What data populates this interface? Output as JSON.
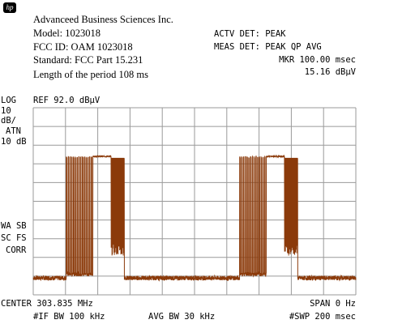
{
  "logo": "hp",
  "header": {
    "company": "Advanceed Business Sciences Inc.",
    "model": "Model: 1023018",
    "fcc_id": "FCC ID: OAM 1023018",
    "standard": "Standard: FCC Part 15.231",
    "period": "Length of the period 108 ms"
  },
  "instrument": {
    "actv_det": "ACTV DET: PEAK",
    "meas_det": "MEAS DET: PEAK QP AVG",
    "mkr": "MKR 100.00 msec",
    "mkr_level": "15.16 dBµV",
    "ref": "REF 92.0 dBµV"
  },
  "left_panel": {
    "log": "LOG",
    "div": "10",
    "dbdiv": "dB/",
    "atn": "ATN",
    "atn_val": "10 dB",
    "wa_sb": "WA SB",
    "sc_fs": "SC FS",
    "corr": "CORR"
  },
  "footer": {
    "center": "CENTER 303.835 MHz",
    "span": "SPAN 0 Hz",
    "if_bw": "#IF BW 100 kHz",
    "avg_bw": "AVG BW 30 kHz",
    "swp": "#SWP 200 msec"
  },
  "colors": {
    "trace": "#8b3a0a",
    "grid": "#9a9a9a"
  },
  "chart_data": {
    "type": "line",
    "x_unit": "msec",
    "y_unit": "dBµV",
    "xlim": [
      0,
      200
    ],
    "ylim": [
      -8,
      92
    ],
    "grid": true,
    "noise_floor": 1,
    "bursts": [
      {
        "pulses_start": 20.5,
        "pulses_end": 37,
        "pulse_period": 1.1,
        "pulse_width": 0.35,
        "pulse_top": 65,
        "pulse_base": 2,
        "plateau_start": 36.5,
        "plateau_end": 48.2,
        "plateau_level": 66,
        "dense_start": 46.5,
        "dense_end": 56.5,
        "dense_top": 65,
        "dense_base": 13
      },
      {
        "pulses_start": 128,
        "pulses_end": 144.5,
        "pulse_period": 1.1,
        "pulse_width": 0.35,
        "pulse_top": 65,
        "pulse_base": 2,
        "plateau_start": 144,
        "plateau_end": 155.7,
        "plateau_level": 66,
        "dense_start": 154,
        "dense_end": 164,
        "dense_top": 65,
        "dense_base": 13
      }
    ]
  }
}
